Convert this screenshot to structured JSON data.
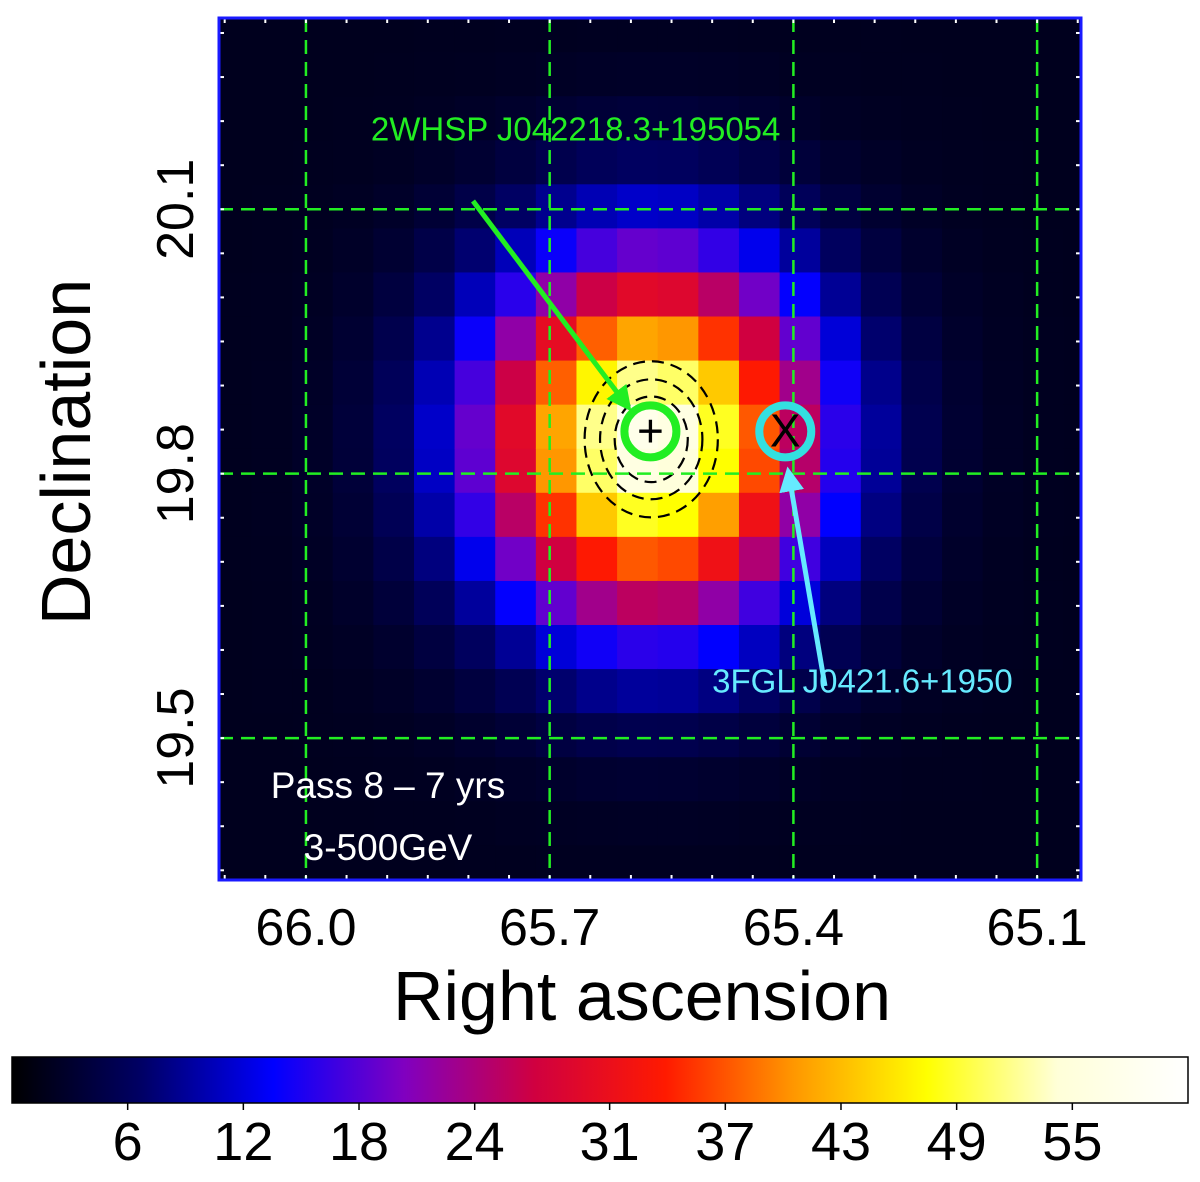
{
  "chart_data": {
    "type": "heatmap",
    "title": "",
    "xlabel": "Right ascension",
    "ylabel": "Declination",
    "xlim": [
      66.107,
      65.046
    ],
    "ylim": [
      19.339,
      20.317
    ],
    "x_ticks": [
      {
        "value": 66.0,
        "label": "66.0"
      },
      {
        "value": 65.7,
        "label": "65.7"
      },
      {
        "value": 65.4,
        "label": "65.4"
      },
      {
        "value": 65.1,
        "label": "65.1"
      }
    ],
    "y_ticks": [
      {
        "value": 19.5,
        "label": "19.5"
      },
      {
        "value": 19.8,
        "label": "19.8"
      },
      {
        "value": 20.1,
        "label": "20.1"
      }
    ],
    "grid": "dashed green coordinate grid",
    "grid_color": "#22ee22",
    "frame_color": "#1a1aff",
    "map": {
      "pixel_size_deg": 0.05,
      "peak_ra": 65.576,
      "peak_dec": 19.838,
      "peak_counts": 58,
      "background_counts": 2,
      "psf_sigma_deg": 0.14
    },
    "contours": {
      "center_ra": 65.575,
      "center_dec": 19.839,
      "radii_deg": [
        0.045,
        0.063,
        0.082
      ],
      "style": "dashed",
      "color": "#000000"
    },
    "sources": [
      {
        "name": "2WHSP J042218.3+195054",
        "ra": 65.576,
        "dec": 19.848,
        "marker": "+",
        "circle_color": "#22ee22",
        "label_color": "#22ee22",
        "label_ra": 65.92,
        "label_dec": 20.178
      },
      {
        "name": "3FGL J0421.6+1950",
        "ra": 65.41,
        "dec": 19.848,
        "marker": "X",
        "circle_color": "#33e0e0",
        "label_color": "#66eaff",
        "label_ra": 65.5,
        "label_dec": 19.552
      }
    ],
    "annotations": [
      "Pass 8 – 7 yrs",
      "3-500GeV"
    ],
    "annotation_color": "#ffffff",
    "colorbar": {
      "orientation": "horizontal",
      "min": 0,
      "max": 61,
      "ticks": [
        6,
        12,
        18,
        24,
        31,
        37,
        43,
        49,
        55
      ],
      "colormap": [
        "#000000",
        "#000066",
        "#0000ff",
        "#8000c0",
        "#d00040",
        "#ff1a00",
        "#ff9900",
        "#ffff00",
        "#ffffd8",
        "#ffffff"
      ]
    }
  }
}
